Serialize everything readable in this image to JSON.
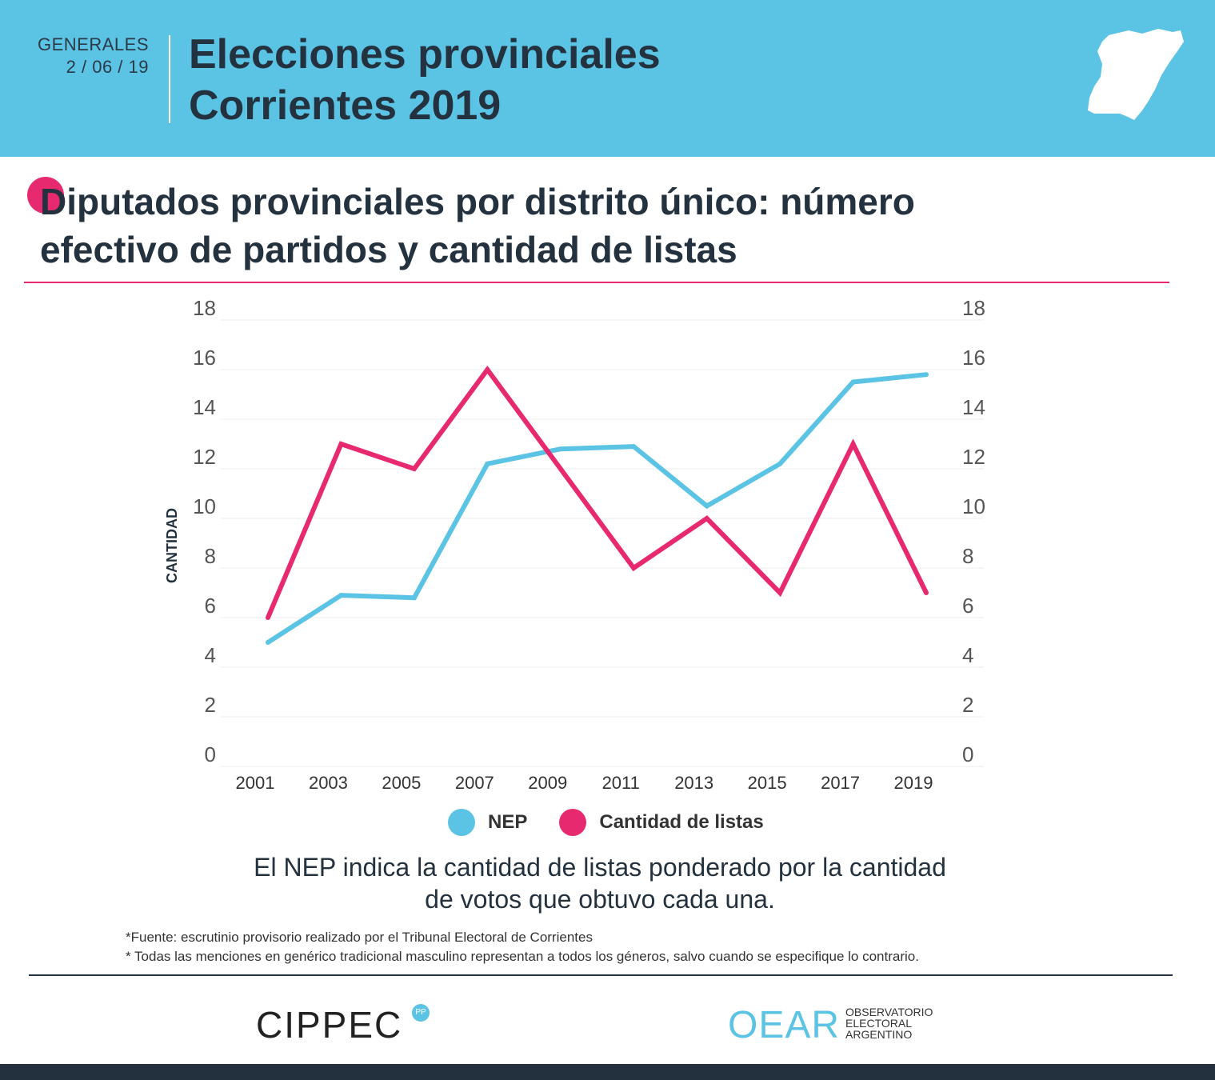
{
  "header": {
    "kicker_line1": "GENERALES",
    "kicker_line2": "2 / 06 / 19",
    "title_line1": "Elecciones provinciales",
    "title_line2": "Corrientes 2019"
  },
  "subtitle": {
    "line1": "Diputados provinciales por distrito único: número",
    "line2": "efectivo de partidos y cantidad de listas"
  },
  "chart_data": {
    "type": "line",
    "ylabel": "CANTIDAD",
    "ylim": [
      0,
      18
    ],
    "yticks": [
      "0",
      "2",
      "4",
      "6",
      "8",
      "10",
      "12",
      "14",
      "16",
      "18"
    ],
    "categories": [
      "2001",
      "2003",
      "2005",
      "2007",
      "2009",
      "2011",
      "2013",
      "2015",
      "2017",
      "2019"
    ],
    "series": [
      {
        "name": "NEP",
        "color": "#5bc3e4",
        "values": [
          5.0,
          6.9,
          6.8,
          12.2,
          12.8,
          12.9,
          10.5,
          12.2,
          15.5,
          15.8
        ]
      },
      {
        "name": "Cantidad de listas",
        "color": "#e72a6f",
        "values": [
          6,
          13,
          12,
          16,
          12,
          8,
          10,
          7,
          13,
          7
        ]
      }
    ],
    "grid": true,
    "legend": "bottom"
  },
  "note": {
    "line1": "El NEP indica la cantidad de listas ponderado por la cantidad",
    "line2": "de votos que obtuvo cada una."
  },
  "footnotes": [
    "*Fuente: escrutinio provisorio realizado por el Tribunal Electoral de Corrientes",
    "* Todas las menciones en genérico tradicional masculino representan a todos los géneros, salvo cuando se especifique lo contrario."
  ],
  "logos": {
    "cippec": "CIPPEC",
    "cippec_badge": "PP",
    "oear": "OEAR",
    "oear_sub1": "OBSERVATORIO",
    "oear_sub2": "ELECTORAL",
    "oear_sub3": "ARGENTINO"
  },
  "colors": {
    "header_bg": "#5bc3e4",
    "accent": "#e72a6f",
    "dark": "#23313e"
  }
}
